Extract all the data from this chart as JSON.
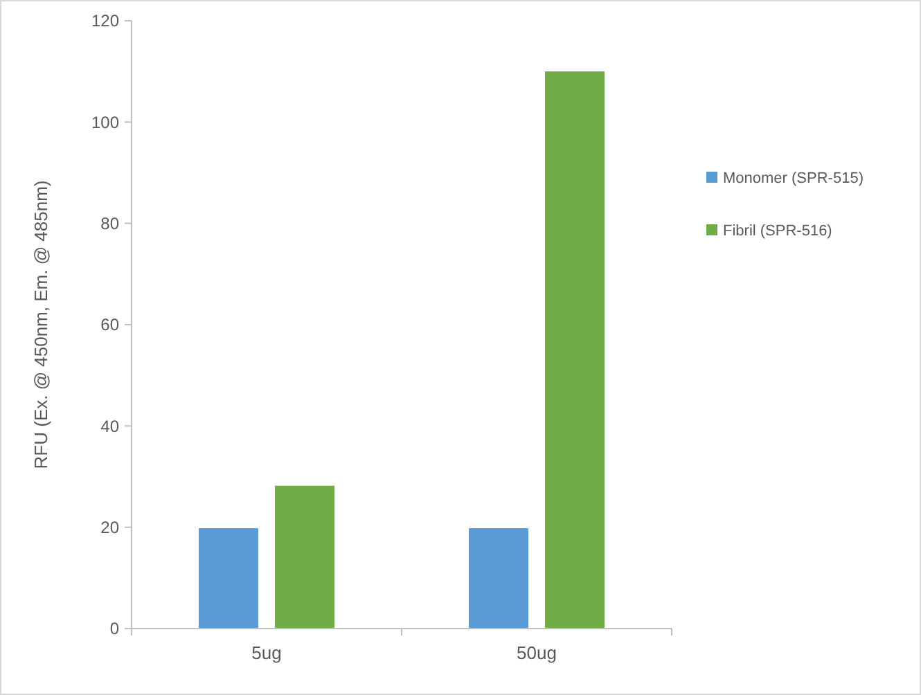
{
  "chart_data": {
    "type": "bar",
    "ylabel": "RFU (Ex. @ 450nm, Em. @ 485nm)",
    "categories": [
      "5ug",
      "50ug"
    ],
    "series": [
      {
        "name": "Monomer (SPR-515)",
        "color": "#5b9bd5",
        "values": [
          19.8,
          19.8
        ]
      },
      {
        "name": "Fibril (SPR-516)",
        "color": "#70ad47",
        "values": [
          28.2,
          110
        ]
      }
    ],
    "ylim": [
      0,
      120
    ],
    "yticks": [
      0,
      20,
      40,
      60,
      80,
      100,
      120
    ],
    "grid": false,
    "legend": "right"
  }
}
